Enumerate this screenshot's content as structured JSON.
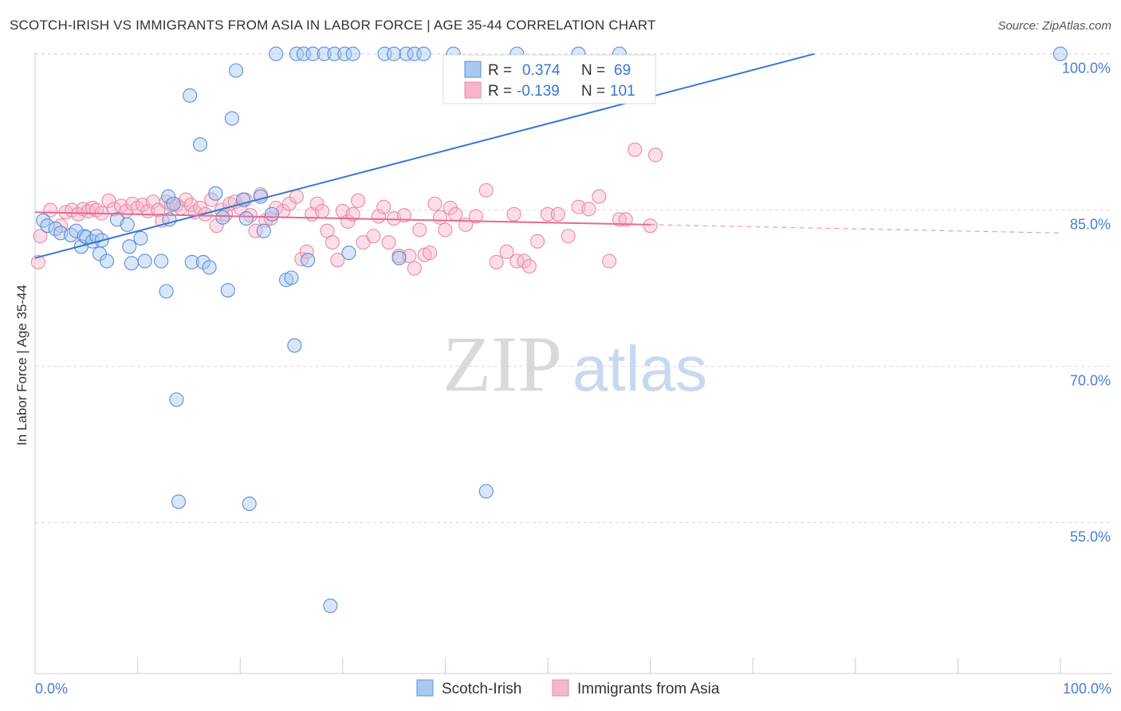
{
  "title": "SCOTCH-IRISH VS IMMIGRANTS FROM ASIA IN LABOR FORCE | AGE 35-44 CORRELATION CHART",
  "source": "Source: ZipAtlas.com",
  "watermark": {
    "zip": "ZIP",
    "atlas": "atlas"
  },
  "colors": {
    "blue_fill": "#a9c8f0",
    "blue_stroke": "#5b8fd9",
    "blue_line": "#3a76d0",
    "pink_fill": "#f7b6c9",
    "pink_stroke": "#e88aa8",
    "pink_line": "#e66a93",
    "tick_text": "#4a7cd6",
    "grid": "#d8d8d8"
  },
  "chart_data": {
    "type": "scatter",
    "xlabel": "",
    "ylabel": "In Labor Force | Age 35-44",
    "xlim": [
      0,
      100
    ],
    "ylim": [
      40.5,
      101.5
    ],
    "x_tick_labels": [
      "0.0%",
      "100.0%"
    ],
    "y_ticks": [
      {
        "value": 100,
        "label": "100.0%"
      },
      {
        "value": 85,
        "label": "85.0%"
      },
      {
        "value": 70,
        "label": "70.0%"
      },
      {
        "value": 55,
        "label": "55.0%"
      }
    ],
    "grid": "horizontal dashed",
    "legend_stats": [
      {
        "r_label": "R =",
        "r": "0.374",
        "n_label": "N =",
        "n": "69"
      },
      {
        "r_label": "R =",
        "r": "-0.139",
        "n_label": "N =",
        "n": "101"
      }
    ],
    "series": [
      {
        "name": "Scotch-Irish",
        "trend": {
          "x0": 0,
          "y0": 80.4,
          "x1": 76,
          "y1": 100.0
        },
        "points": [
          [
            0.8,
            84.0
          ],
          [
            1.2,
            83.5
          ],
          [
            2.0,
            83.2
          ],
          [
            2.5,
            82.8
          ],
          [
            3.5,
            82.6
          ],
          [
            4.0,
            83.0
          ],
          [
            4.8,
            82.5
          ],
          [
            4.5,
            81.5
          ],
          [
            5.0,
            82.4
          ],
          [
            5.6,
            82.0
          ],
          [
            6.0,
            82.5
          ],
          [
            6.5,
            82.1
          ],
          [
            6.3,
            80.8
          ],
          [
            7.0,
            80.1
          ],
          [
            8.0,
            84.1
          ],
          [
            9.0,
            83.6
          ],
          [
            9.2,
            81.5
          ],
          [
            9.4,
            79.9
          ],
          [
            10.3,
            82.3
          ],
          [
            10.7,
            80.1
          ],
          [
            12.3,
            80.1
          ],
          [
            12.8,
            77.2
          ],
          [
            13.0,
            86.3
          ],
          [
            13.1,
            84.1
          ],
          [
            13.5,
            85.6
          ],
          [
            13.8,
            66.8
          ],
          [
            14.0,
            57.0
          ],
          [
            15.1,
            96.0
          ],
          [
            15.3,
            80.0
          ],
          [
            16.1,
            91.3
          ],
          [
            16.4,
            80.0
          ],
          [
            17.0,
            79.5
          ],
          [
            17.6,
            86.6
          ],
          [
            18.3,
            84.3
          ],
          [
            18.8,
            77.3
          ],
          [
            19.2,
            93.8
          ],
          [
            19.6,
            98.4
          ],
          [
            20.3,
            86.0
          ],
          [
            20.6,
            84.2
          ],
          [
            20.9,
            56.8
          ],
          [
            22.0,
            86.3
          ],
          [
            22.3,
            83.0
          ],
          [
            23.1,
            84.6
          ],
          [
            23.5,
            100.0
          ],
          [
            24.5,
            78.3
          ],
          [
            25.0,
            78.5
          ],
          [
            25.5,
            100.0
          ],
          [
            25.3,
            72.0
          ],
          [
            26.2,
            100.0
          ],
          [
            26.6,
            80.2
          ],
          [
            27.1,
            100.0
          ],
          [
            28.2,
            100.0
          ],
          [
            28.8,
            47.0
          ],
          [
            29.2,
            100.0
          ],
          [
            30.2,
            100.0
          ],
          [
            30.6,
            80.9
          ],
          [
            31.0,
            100.0
          ],
          [
            34.1,
            100.0
          ],
          [
            35.0,
            100.0
          ],
          [
            35.5,
            80.4
          ],
          [
            36.2,
            100.0
          ],
          [
            37.0,
            100.0
          ],
          [
            37.9,
            100.0
          ],
          [
            40.8,
            100.0
          ],
          [
            44.0,
            58.0
          ],
          [
            47.0,
            100.0
          ],
          [
            53.0,
            100.0
          ],
          [
            57.0,
            100.0
          ],
          [
            100.0,
            100.0
          ]
        ]
      },
      {
        "name": "Immigrants from Asia",
        "trend": {
          "x0": 0,
          "y0": 84.8,
          "x1": 60,
          "y1": 83.6,
          "dash_x1": 100,
          "dash_y1": 82.8
        },
        "points": [
          [
            0.3,
            80.0
          ],
          [
            0.5,
            82.5
          ],
          [
            1.5,
            85.0
          ],
          [
            2.5,
            83.5
          ],
          [
            3.0,
            84.8
          ],
          [
            3.6,
            85.0
          ],
          [
            4.2,
            84.6
          ],
          [
            4.7,
            85.1
          ],
          [
            5.2,
            84.9
          ],
          [
            5.6,
            85.2
          ],
          [
            6.0,
            85.0
          ],
          [
            6.5,
            84.7
          ],
          [
            7.2,
            85.9
          ],
          [
            7.7,
            85.1
          ],
          [
            8.4,
            85.4
          ],
          [
            8.9,
            84.9
          ],
          [
            9.5,
            85.6
          ],
          [
            10.0,
            85.2
          ],
          [
            10.5,
            85.5
          ],
          [
            11.0,
            84.9
          ],
          [
            11.5,
            85.8
          ],
          [
            12.0,
            85.0
          ],
          [
            12.4,
            84.0
          ],
          [
            12.8,
            85.8
          ],
          [
            13.3,
            85.5
          ],
          [
            13.8,
            85.5
          ],
          [
            14.2,
            85.2
          ],
          [
            14.7,
            86.0
          ],
          [
            15.2,
            85.5
          ],
          [
            15.6,
            84.8
          ],
          [
            16.1,
            85.2
          ],
          [
            16.6,
            84.6
          ],
          [
            17.2,
            86.0
          ],
          [
            17.7,
            83.5
          ],
          [
            18.2,
            85.0
          ],
          [
            18.6,
            84.6
          ],
          [
            19.0,
            85.6
          ],
          [
            19.5,
            85.8
          ],
          [
            20.0,
            85.2
          ],
          [
            20.5,
            86.0
          ],
          [
            21.0,
            84.5
          ],
          [
            21.5,
            83.0
          ],
          [
            22.0,
            86.5
          ],
          [
            22.5,
            84.0
          ],
          [
            23.0,
            84.2
          ],
          [
            23.5,
            85.2
          ],
          [
            24.2,
            84.9
          ],
          [
            24.8,
            85.6
          ],
          [
            25.5,
            86.3
          ],
          [
            26.0,
            80.3
          ],
          [
            26.5,
            81.0
          ],
          [
            27.0,
            84.6
          ],
          [
            27.5,
            85.6
          ],
          [
            28.0,
            84.9
          ],
          [
            28.5,
            83.0
          ],
          [
            29.0,
            81.9
          ],
          [
            29.5,
            80.2
          ],
          [
            30.0,
            84.9
          ],
          [
            30.5,
            83.9
          ],
          [
            31.0,
            84.6
          ],
          [
            31.5,
            85.9
          ],
          [
            32.0,
            81.9
          ],
          [
            33.0,
            82.5
          ],
          [
            33.5,
            84.4
          ],
          [
            34.0,
            85.3
          ],
          [
            34.5,
            81.9
          ],
          [
            35.0,
            84.2
          ],
          [
            35.5,
            80.6
          ],
          [
            36.0,
            84.5
          ],
          [
            36.5,
            80.6
          ],
          [
            37.0,
            79.4
          ],
          [
            37.5,
            83.1
          ],
          [
            38.0,
            80.7
          ],
          [
            38.5,
            80.9
          ],
          [
            39.0,
            85.6
          ],
          [
            39.5,
            84.3
          ],
          [
            40.0,
            83.1
          ],
          [
            40.5,
            85.2
          ],
          [
            41.0,
            84.6
          ],
          [
            42.0,
            83.6
          ],
          [
            43.0,
            84.4
          ],
          [
            44.0,
            86.9
          ],
          [
            45.0,
            80.0
          ],
          [
            46.0,
            81.0
          ],
          [
            46.7,
            84.6
          ],
          [
            47.0,
            80.1
          ],
          [
            47.7,
            80.1
          ],
          [
            48.2,
            79.6
          ],
          [
            49.0,
            82.0
          ],
          [
            50.0,
            84.6
          ],
          [
            51.0,
            84.6
          ],
          [
            52.0,
            82.5
          ],
          [
            53.0,
            85.3
          ],
          [
            54.0,
            85.1
          ],
          [
            55.0,
            86.3
          ],
          [
            56.0,
            80.1
          ],
          [
            57.0,
            84.1
          ],
          [
            57.6,
            84.1
          ],
          [
            58.5,
            90.8
          ],
          [
            60.0,
            83.5
          ],
          [
            60.5,
            90.3
          ]
        ]
      }
    ]
  }
}
